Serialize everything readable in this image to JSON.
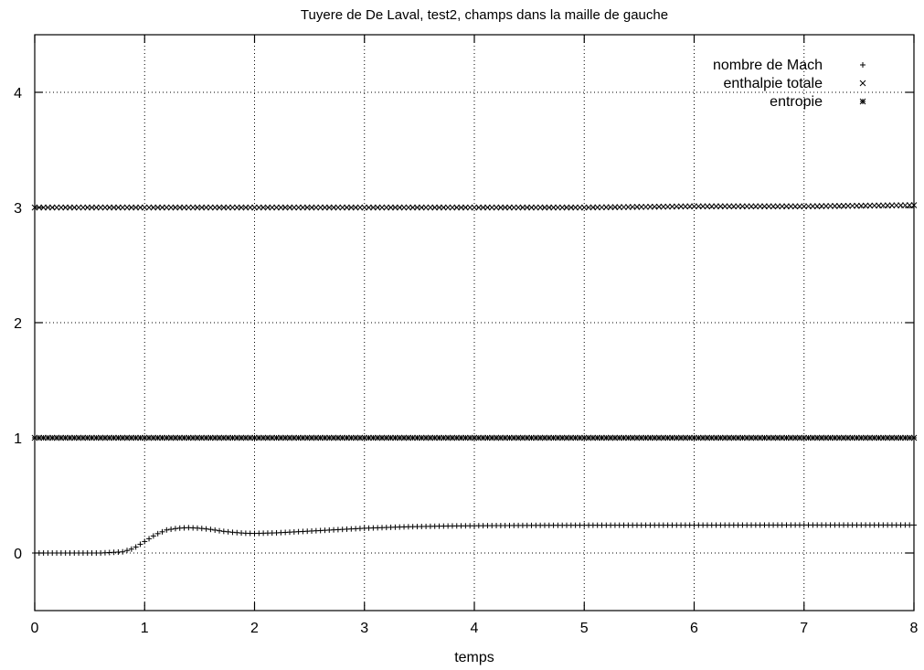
{
  "chart_data": {
    "type": "scatter",
    "title": "Tuyere de De Laval, test2, champs dans la maille de gauche",
    "xlabel": "temps",
    "ylabel": "",
    "xlim": [
      0,
      8
    ],
    "ylim": [
      -0.5,
      4.5
    ],
    "xticks": [
      0,
      1,
      2,
      3,
      4,
      5,
      6,
      7,
      8
    ],
    "yticks": [
      0,
      1,
      2,
      3,
      4
    ],
    "xtick_labels": [
      "0",
      "1",
      "2",
      "3",
      "4",
      "5",
      "6",
      "7",
      "8"
    ],
    "ytick_labels": [
      "0",
      "1",
      "2",
      "3",
      "4"
    ],
    "grid": true,
    "legend_position": "top-right",
    "series": [
      {
        "name": "nombre de Mach",
        "marker": "plus",
        "x": [
          0,
          0.2,
          0.4,
          0.6,
          0.8,
          0.9,
          1.0,
          1.1,
          1.2,
          1.3,
          1.4,
          1.5,
          1.6,
          1.7,
          1.8,
          1.9,
          2.0,
          2.2,
          2.4,
          2.6,
          2.8,
          3.0,
          3.4,
          3.8,
          4.2,
          4.6,
          5.0,
          6.0,
          7.0,
          8.0
        ],
        "y": [
          0,
          0,
          0,
          0,
          0.01,
          0.04,
          0.1,
          0.16,
          0.2,
          0.215,
          0.22,
          0.215,
          0.205,
          0.19,
          0.18,
          0.172,
          0.17,
          0.175,
          0.185,
          0.195,
          0.205,
          0.215,
          0.228,
          0.235,
          0.238,
          0.24,
          0.241,
          0.242,
          0.243,
          0.243
        ]
      },
      {
        "name": "enthalpie totale",
        "marker": "cross",
        "x": [
          0,
          1,
          2,
          3,
          4,
          5,
          6,
          7,
          8
        ],
        "y": [
          3.0,
          3.0,
          3.0,
          3.0,
          3.0,
          3.0,
          3.01,
          3.01,
          3.02
        ]
      },
      {
        "name": "entropie",
        "marker": "star",
        "x": [
          0,
          1,
          2,
          3,
          4,
          5,
          6,
          7,
          8
        ],
        "y": [
          1.0,
          1.0,
          1.0,
          1.0,
          1.0,
          1.0,
          1.0,
          1.0,
          1.0
        ]
      }
    ]
  }
}
